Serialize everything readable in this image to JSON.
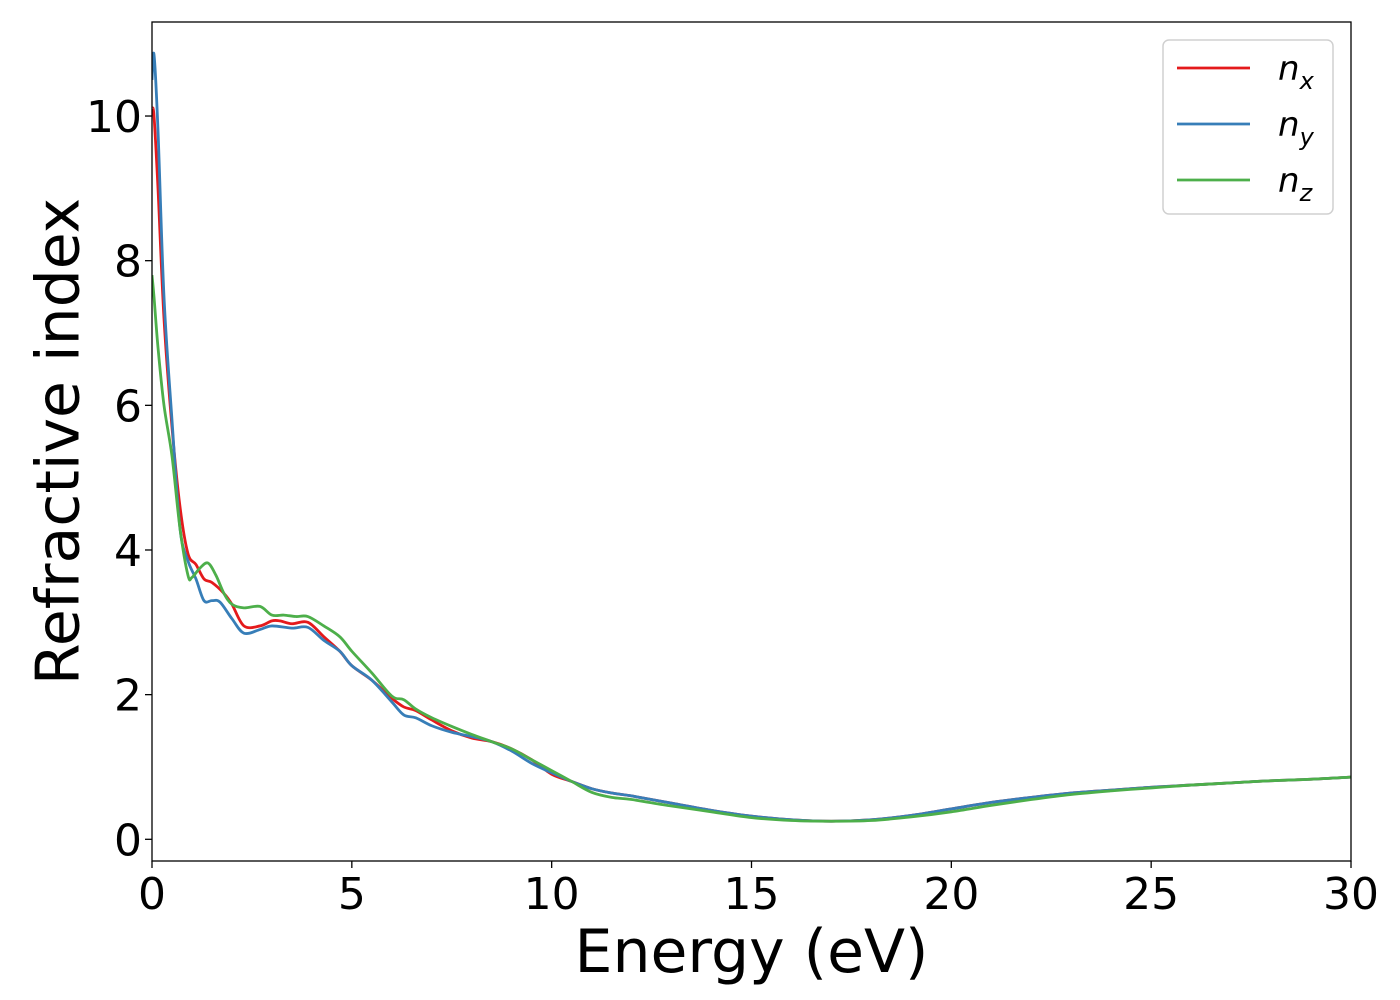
{
  "chart_data": {
    "type": "line",
    "xlabel": "Energy (eV)",
    "ylabel": "Refractive index",
    "xlim": [
      0,
      30
    ],
    "ylim": [
      -0.3,
      11.3
    ],
    "xticks": [
      0,
      5,
      10,
      15,
      20,
      25,
      30
    ],
    "yticks": [
      0,
      2,
      4,
      6,
      8,
      10
    ],
    "grid": false,
    "legend_position": "top-right",
    "series": [
      {
        "name": "n_x",
        "label_main": "n",
        "label_sub": "x",
        "color": "#e41a1c",
        "x": [
          0,
          0.05,
          0.15,
          0.3,
          0.5,
          0.7,
          0.9,
          1.1,
          1.3,
          1.5,
          1.8,
          2.0,
          2.3,
          2.7,
          3.0,
          3.2,
          3.5,
          3.9,
          4.3,
          4.7,
          5.0,
          5.5,
          6.0,
          6.3,
          6.6,
          7.0,
          7.5,
          8.0,
          8.5,
          9.0,
          9.5,
          10.0,
          10.5,
          11.0,
          11.5,
          12.0,
          13.0,
          14.0,
          15.0,
          16.0,
          17.0,
          18.0,
          19.0,
          20.0,
          21.0,
          22.0,
          23.0,
          24.0,
          25.0,
          26.0,
          27.0,
          28.0,
          29.0,
          30.0
        ],
        "y": [
          10.1,
          10.0,
          9.0,
          7.2,
          5.7,
          4.6,
          3.95,
          3.8,
          3.6,
          3.55,
          3.4,
          3.25,
          2.95,
          2.95,
          3.02,
          3.02,
          2.98,
          3.0,
          2.8,
          2.6,
          2.4,
          2.2,
          1.95,
          1.83,
          1.78,
          1.65,
          1.5,
          1.4,
          1.35,
          1.25,
          1.1,
          0.9,
          0.8,
          0.7,
          0.64,
          0.6,
          0.5,
          0.4,
          0.32,
          0.27,
          0.25,
          0.27,
          0.33,
          0.42,
          0.51,
          0.58,
          0.64,
          0.68,
          0.72,
          0.75,
          0.78,
          0.81,
          0.83,
          0.86
        ]
      },
      {
        "name": "n_y",
        "label_main": "n",
        "label_sub": "y",
        "color": "#377eb8",
        "x": [
          0,
          0.05,
          0.15,
          0.3,
          0.5,
          0.7,
          0.9,
          1.1,
          1.3,
          1.5,
          1.7,
          2.0,
          2.3,
          2.7,
          3.0,
          3.5,
          3.9,
          4.3,
          4.7,
          5.0,
          5.5,
          6.0,
          6.3,
          6.6,
          7.0,
          7.5,
          8.0,
          8.5,
          9.0,
          9.5,
          10.0,
          10.5,
          11.0,
          11.5,
          12.0,
          13.0,
          14.0,
          15.0,
          16.0,
          17.0,
          18.0,
          19.0,
          20.0,
          21.0,
          22.0,
          23.0,
          24.0,
          25.0,
          26.0,
          27.0,
          28.0,
          29.0,
          30.0
        ],
        "y": [
          10.5,
          10.85,
          9.8,
          7.5,
          5.8,
          4.3,
          3.85,
          3.6,
          3.3,
          3.3,
          3.28,
          3.05,
          2.85,
          2.9,
          2.95,
          2.92,
          2.93,
          2.75,
          2.6,
          2.4,
          2.2,
          1.9,
          1.72,
          1.68,
          1.57,
          1.48,
          1.42,
          1.35,
          1.22,
          1.05,
          0.92,
          0.8,
          0.7,
          0.64,
          0.6,
          0.5,
          0.4,
          0.32,
          0.27,
          0.25,
          0.27,
          0.33,
          0.42,
          0.51,
          0.58,
          0.64,
          0.68,
          0.72,
          0.75,
          0.78,
          0.81,
          0.83,
          0.86
        ]
      },
      {
        "name": "n_z",
        "label_main": "n",
        "label_sub": "z",
        "color": "#4daf4a",
        "x": [
          0,
          0.05,
          0.15,
          0.3,
          0.5,
          0.7,
          0.9,
          1.0,
          1.2,
          1.4,
          1.6,
          1.8,
          2.0,
          2.3,
          2.7,
          3.0,
          3.3,
          3.6,
          3.9,
          4.3,
          4.7,
          5.0,
          5.5,
          6.0,
          6.3,
          6.6,
          7.0,
          7.5,
          8.0,
          8.5,
          9.0,
          9.5,
          10.0,
          10.5,
          11.0,
          11.5,
          12.0,
          13.0,
          14.0,
          15.0,
          16.0,
          17.0,
          18.0,
          19.0,
          20.0,
          21.0,
          22.0,
          23.0,
          24.0,
          25.0,
          26.0,
          27.0,
          28.0,
          29.0,
          30.0
        ],
        "y": [
          7.8,
          7.5,
          6.8,
          6.0,
          5.3,
          4.3,
          3.65,
          3.62,
          3.75,
          3.82,
          3.65,
          3.4,
          3.25,
          3.2,
          3.22,
          3.1,
          3.1,
          3.08,
          3.08,
          2.95,
          2.8,
          2.6,
          2.3,
          1.98,
          1.93,
          1.8,
          1.68,
          1.56,
          1.45,
          1.35,
          1.25,
          1.1,
          0.95,
          0.8,
          0.65,
          0.58,
          0.55,
          0.46,
          0.38,
          0.3,
          0.26,
          0.25,
          0.26,
          0.31,
          0.38,
          0.47,
          0.55,
          0.62,
          0.67,
          0.71,
          0.75,
          0.78,
          0.81,
          0.83,
          0.86
        ]
      }
    ]
  }
}
